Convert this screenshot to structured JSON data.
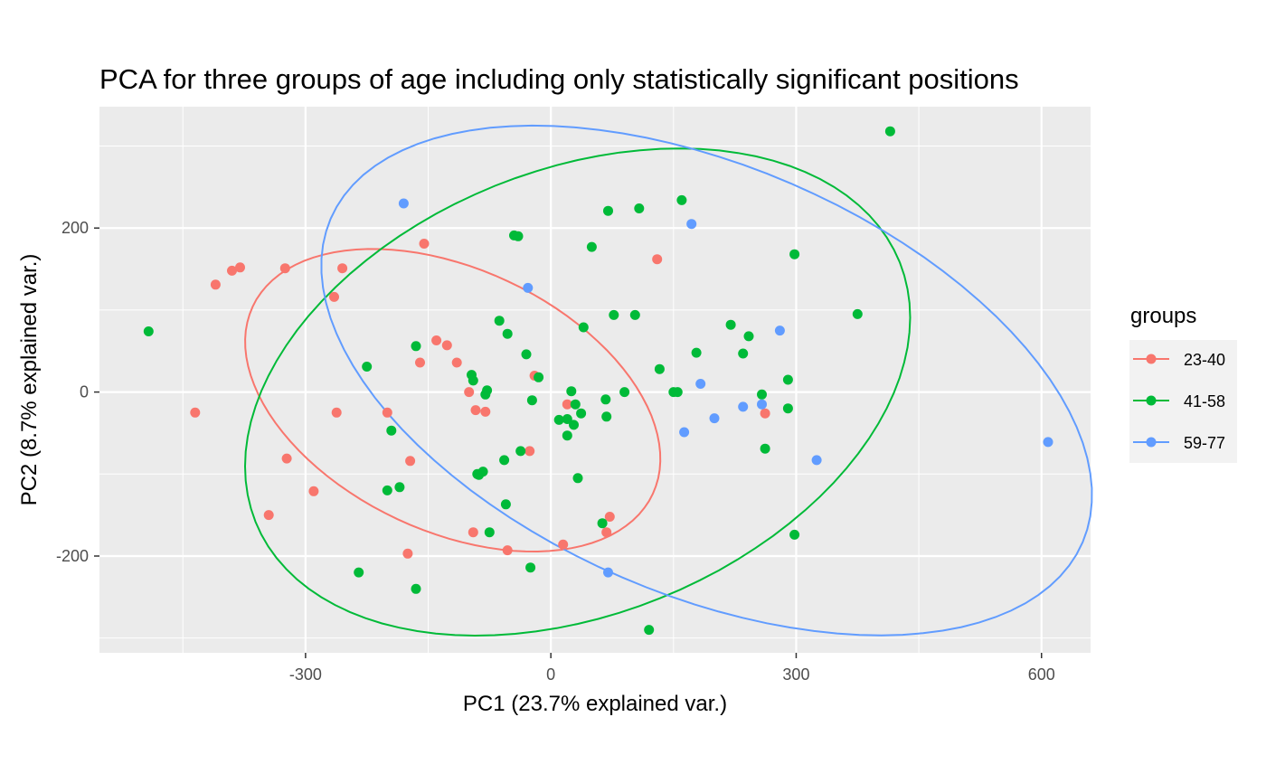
{
  "chart_data": {
    "type": "scatter",
    "title": "PCA for three groups of age including only statistically significant positions",
    "xlabel": "PC1 (23.7% explained var.)",
    "ylabel": "PC2 (8.7% explained var.)",
    "xlim": [
      -552,
      660
    ],
    "ylim": [
      -318,
      348
    ],
    "x_ticks": [
      -300,
      0,
      300,
      600
    ],
    "x_tick_labels": [
      "-300",
      "0",
      "300",
      "600"
    ],
    "y_ticks": [
      -200,
      0,
      200
    ],
    "y_tick_labels": [
      "-200",
      "0",
      "200"
    ],
    "grid": true,
    "legend": {
      "title": "groups",
      "position": "right"
    },
    "series": [
      {
        "name": "23-40",
        "color": "#F8766D",
        "x": [
          -435,
          -410,
          -390,
          -380,
          -345,
          -325,
          -323,
          -290,
          -265,
          -262,
          -255,
          -200,
          -175,
          -172,
          -160,
          -155,
          -140,
          -127,
          -115,
          -100,
          -95,
          -92,
          -80,
          -53,
          -26,
          -20,
          15,
          20,
          68,
          72,
          130,
          262
        ],
        "y": [
          -25,
          131,
          148,
          152,
          -150,
          151,
          -81,
          -121,
          116,
          -25,
          151,
          -25,
          -197,
          -84,
          36,
          181,
          63,
          57,
          36,
          0,
          -171,
          -22,
          -24,
          -193,
          -72,
          20,
          -186,
          -15,
          -171,
          -152,
          162,
          -26
        ],
        "ellipse": {
          "cx": -120,
          "cy": -10,
          "rx": 270,
          "ry": 160,
          "angle_deg": -25
        }
      },
      {
        "name": "41-58",
        "color": "#00BA38",
        "x": [
          -492,
          -235,
          -225,
          -200,
          -195,
          -185,
          -165,
          -165,
          -97,
          -95,
          -90,
          -88,
          -83,
          -80,
          -78,
          -75,
          -63,
          -57,
          -55,
          -53,
          -45,
          -40,
          -37,
          -30,
          -25,
          -23,
          -15,
          10,
          20,
          20,
          25,
          28,
          30,
          33,
          37,
          40,
          50,
          63,
          67,
          68,
          70,
          77,
          103,
          108,
          120,
          133,
          160,
          178,
          220,
          235,
          242,
          258,
          262,
          290,
          290,
          298,
          298,
          375,
          415,
          90,
          150,
          155
        ],
        "y": [
          74,
          -220,
          31,
          -120,
          -47,
          -116,
          -240,
          56,
          21,
          14,
          -100,
          -101,
          -97,
          -3,
          2,
          -171,
          87,
          -83,
          -137,
          71,
          191,
          190,
          -72,
          46,
          -214,
          -10,
          18,
          -34,
          -33,
          -53,
          1,
          -40,
          -15,
          -105,
          -26,
          79,
          177,
          -160,
          -9,
          -30,
          221,
          94,
          94,
          224,
          -290,
          28,
          234,
          48,
          82,
          47,
          68,
          -3,
          -69,
          15,
          -20,
          168,
          -174,
          95,
          318,
          0,
          0,
          0
        ]
      },
      {
        "name": "59-77",
        "color": "#619CFF",
        "x": [
          -180,
          -28,
          70,
          172,
          163,
          183,
          200,
          235,
          258,
          280,
          325,
          608
        ],
        "y": [
          230,
          127,
          -220,
          205,
          -49,
          10,
          -32,
          -18,
          -15,
          75,
          -83,
          -61
        ]
      }
    ]
  }
}
